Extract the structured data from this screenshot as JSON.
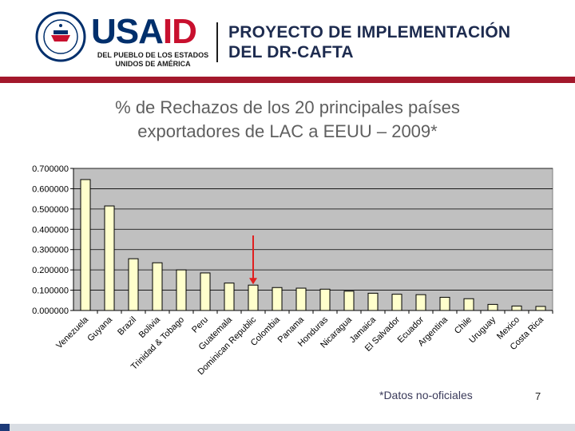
{
  "header": {
    "logo_usa": "USA",
    "logo_id": "ID",
    "logo_tagline_line1": "DEL PUEBLO DE LOS ESTADOS",
    "logo_tagline_line2": "UNIDOS DE AMÉRICA",
    "project_line1": "PROYECTO DE IMPLEMENTACIÓN",
    "project_line2": "DEL DR-CAFTA",
    "colors": {
      "navy": "#002f6c",
      "red": "#c8102e",
      "band": "#a3182b"
    }
  },
  "slide": {
    "title_line1": "% de Rechazos de los 20 principales países",
    "title_line2": "exportadores de LAC a EEUU – 2009*",
    "note": "*Datos no-oficiales",
    "page_number": "7"
  },
  "chart_data": {
    "type": "bar",
    "categories": [
      "Venezuela",
      "Guyana",
      "Brazil",
      "Bolivia",
      "Trinidad & Tobago",
      "Peru",
      "Guatemala",
      "Dominican Republic",
      "Colombia",
      "Panama",
      "Honduras",
      "Nicaragua",
      "Jamaica",
      "El Salvador",
      "Ecuador",
      "Argentina",
      "Chile",
      "Uruguay",
      "Mexico",
      "Costa Rica"
    ],
    "values": [
      0.645,
      0.515,
      0.255,
      0.235,
      0.2,
      0.185,
      0.135,
      0.125,
      0.113,
      0.11,
      0.105,
      0.095,
      0.085,
      0.08,
      0.078,
      0.065,
      0.058,
      0.03,
      0.022,
      0.02
    ],
    "ylim": [
      0,
      0.7
    ],
    "yticks": [
      "0.000000",
      "0.100000",
      "0.200000",
      "0.300000",
      "0.400000",
      "0.500000",
      "0.600000",
      "0.700000"
    ],
    "highlight_category": "Dominican Republic",
    "bar_color": "#ffffcc",
    "plot_bg": "#c0c0c0",
    "arrow_color": "#e02020"
  }
}
